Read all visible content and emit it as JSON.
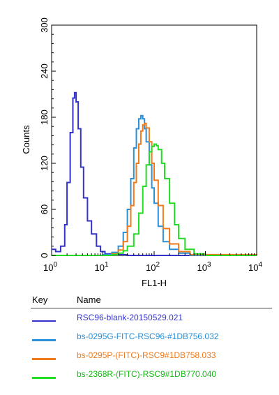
{
  "chart_data": {
    "type": "line",
    "xlabel": "FL1-H",
    "ylabel": "Counts",
    "xscale": "log",
    "xlim": [
      1,
      10000
    ],
    "ylim": [
      0,
      300
    ],
    "x_ticks": [
      {
        "base": "10",
        "exp": "0"
      },
      {
        "base": "10",
        "exp": "1"
      },
      {
        "base": "10",
        "exp": "2"
      },
      {
        "base": "10",
        "exp": "3"
      },
      {
        "base": "10",
        "exp": "4"
      }
    ],
    "y_ticks": [
      "0",
      "60",
      "120",
      "180",
      "240",
      "300"
    ],
    "y_tick_values": [
      0,
      60,
      120,
      180,
      240,
      300
    ],
    "series": [
      {
        "name": "RSC96-blank-20150529.021",
        "color": "#3333cc",
        "x": [
          1,
          1.2,
          1.5,
          1.8,
          2.0,
          2.3,
          2.6,
          2.8,
          3.0,
          3.3,
          3.7,
          4.2,
          5.0,
          6.0,
          7.5,
          9.0,
          11,
          15,
          30,
          100,
          10000
        ],
        "y": [
          8,
          5,
          12,
          40,
          95,
          160,
          205,
          212,
          200,
          165,
          115,
          75,
          45,
          28,
          12,
          5,
          2,
          1,
          0,
          0,
          0
        ]
      },
      {
        "name": "bs-0295G-FITC-RSC96-#1DB756.032",
        "color": "#2a8fd6",
        "x": [
          1,
          10,
          15,
          20,
          25,
          30,
          35,
          40,
          45,
          50,
          55,
          60,
          65,
          70,
          80,
          90,
          100,
          120,
          150,
          200,
          300,
          500,
          10000
        ],
        "y": [
          0,
          1,
          4,
          12,
          30,
          60,
          100,
          140,
          165,
          178,
          182,
          178,
          165,
          148,
          118,
          88,
          68,
          38,
          18,
          8,
          3,
          0,
          0
        ]
      },
      {
        "name": "bs-0295P-(FITC)-RSC9#1DB758.033",
        "color": "#f07a1a",
        "x": [
          1,
          10,
          15,
          20,
          25,
          30,
          35,
          40,
          45,
          50,
          55,
          60,
          65,
          70,
          80,
          90,
          100,
          120,
          150,
          200,
          300,
          500,
          10000
        ],
        "y": [
          0,
          0,
          2,
          7,
          18,
          38,
          65,
          95,
          120,
          145,
          162,
          170,
          172,
          166,
          148,
          120,
          98,
          65,
          35,
          15,
          5,
          1,
          0
        ]
      },
      {
        "name": "bs-2368R-(FITC)-RSC9#1DB770.040",
        "color": "#22dd22",
        "x": [
          1,
          15,
          20,
          25,
          30,
          40,
          50,
          60,
          70,
          80,
          90,
          100,
          110,
          120,
          140,
          160,
          200,
          250,
          300,
          400,
          600,
          1000,
          10000
        ],
        "y": [
          0,
          1,
          3,
          6,
          12,
          28,
          55,
          90,
          118,
          135,
          142,
          145,
          143,
          138,
          120,
          100,
          68,
          40,
          22,
          8,
          2,
          0,
          0
        ]
      }
    ]
  },
  "legend": {
    "key_header": "Key",
    "name_header": "Name"
  }
}
